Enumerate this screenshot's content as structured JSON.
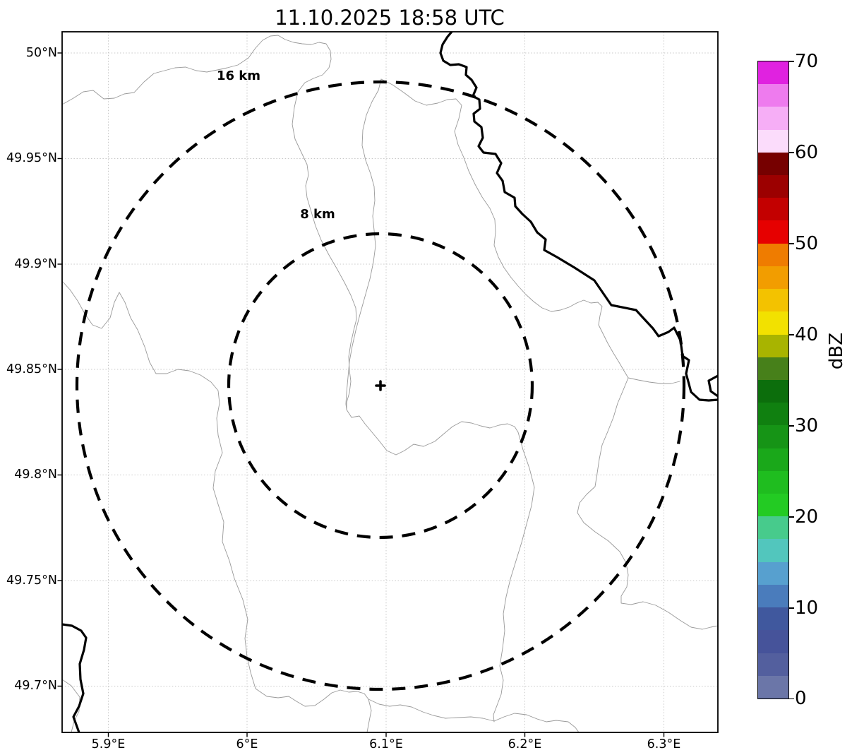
{
  "title": "11.10.2025 18:58 UTC",
  "map": {
    "range_ring_labels": [
      "16 km",
      "8 km"
    ],
    "center_marker_symbol": "+",
    "lon_ticks": [
      "5.9°E",
      "6°E",
      "6.1°E",
      "6.2°E",
      "6.3°E"
    ],
    "lat_ticks": [
      "50°N",
      "49.95°N",
      "49.9°N",
      "49.85°N",
      "49.8°N",
      "49.75°N",
      "49.7°N"
    ]
  },
  "colorbar": {
    "label": "dBZ",
    "tick_labels_top_to_bottom": [
      "70",
      "60",
      "50",
      "40",
      "30",
      "20",
      "10",
      "0"
    ],
    "value_min": 0,
    "value_max": 70,
    "band_step_dbz": 2.5,
    "band_colors_bottom_to_top": [
      "#6b76a8",
      "#535f9e",
      "#46539a",
      "#40589e",
      "#4a7cbc",
      "#57a0cf",
      "#52c6bd",
      "#47cb8c",
      "#23cb23",
      "#1fbd1f",
      "#1aa81a",
      "#169416",
      "#108010",
      "#0c6e0c",
      "#47801a",
      "#a8b400",
      "#f2e100",
      "#f3c200",
      "#f29d00",
      "#ef7c00",
      "#e60000",
      "#c30000",
      "#9c0000",
      "#760000",
      "#fbdcfb",
      "#f6aef6",
      "#ee7bee",
      "#e022e0"
    ]
  },
  "map_data": {
    "type": "radar-range-ring-map",
    "rings_km": [
      8,
      16
    ],
    "lon_range_deg_e": [
      5.867,
      6.339
    ],
    "lat_range_deg_n": [
      49.678,
      50.01
    ],
    "ring_center": {
      "lon_deg_e": 6.096,
      "lat_deg_n": 49.842
    },
    "grid": "dotted",
    "colorbar_position": "right"
  }
}
